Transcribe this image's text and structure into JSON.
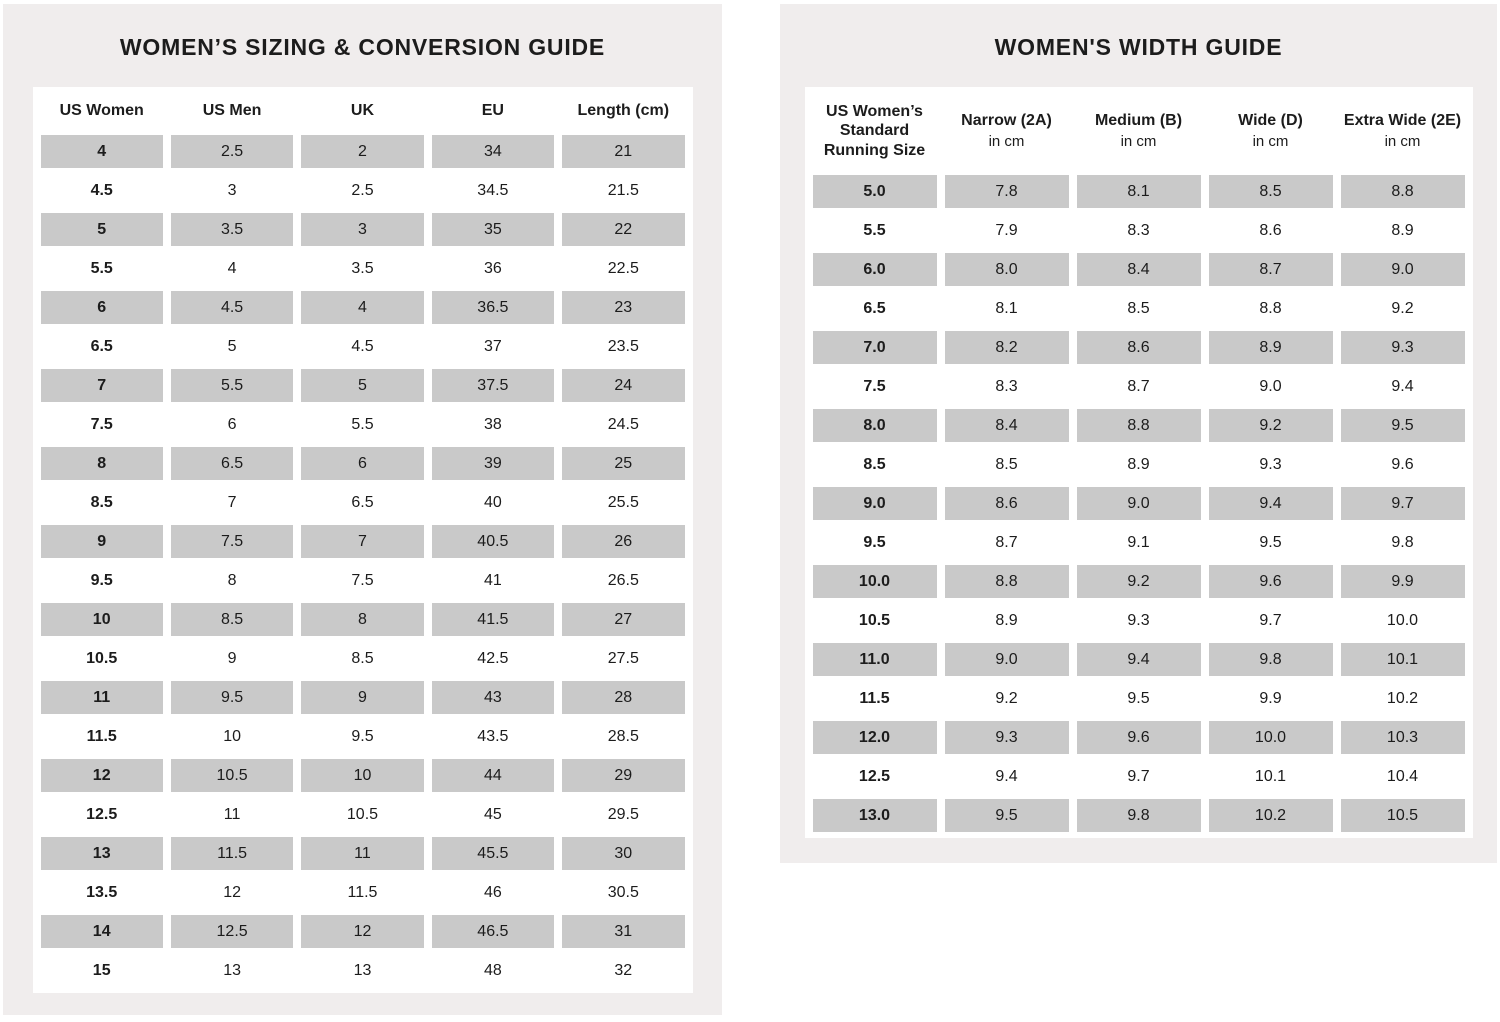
{
  "colors": {
    "panel_bg": "#f0eded",
    "table_bg": "#ffffff",
    "cell_shaded": "#c9c9c9",
    "text": "#1c1c1c"
  },
  "sizing_guide": {
    "title": "WOMEN’S SIZING & CONVERSION GUIDE",
    "columns": [
      {
        "label": "US Women"
      },
      {
        "label": "US Men"
      },
      {
        "label": "UK"
      },
      {
        "label": "EU"
      },
      {
        "label": "Length (cm)"
      }
    ],
    "rows": [
      [
        "4",
        "2.5",
        "2",
        "34",
        "21"
      ],
      [
        "4.5",
        "3",
        "2.5",
        "34.5",
        "21.5"
      ],
      [
        "5",
        "3.5",
        "3",
        "35",
        "22"
      ],
      [
        "5.5",
        "4",
        "3.5",
        "36",
        "22.5"
      ],
      [
        "6",
        "4.5",
        "4",
        "36.5",
        "23"
      ],
      [
        "6.5",
        "5",
        "4.5",
        "37",
        "23.5"
      ],
      [
        "7",
        "5.5",
        "5",
        "37.5",
        "24"
      ],
      [
        "7.5",
        "6",
        "5.5",
        "38",
        "24.5"
      ],
      [
        "8",
        "6.5",
        "6",
        "39",
        "25"
      ],
      [
        "8.5",
        "7",
        "6.5",
        "40",
        "25.5"
      ],
      [
        "9",
        "7.5",
        "7",
        "40.5",
        "26"
      ],
      [
        "9.5",
        "8",
        "7.5",
        "41",
        "26.5"
      ],
      [
        "10",
        "8.5",
        "8",
        "41.5",
        "27"
      ],
      [
        "10.5",
        "9",
        "8.5",
        "42.5",
        "27.5"
      ],
      [
        "11",
        "9.5",
        "9",
        "43",
        "28"
      ],
      [
        "11.5",
        "10",
        "9.5",
        "43.5",
        "28.5"
      ],
      [
        "12",
        "10.5",
        "10",
        "44",
        "29"
      ],
      [
        "12.5",
        "11",
        "10.5",
        "45",
        "29.5"
      ],
      [
        "13",
        "11.5",
        "11",
        "45.5",
        "30"
      ],
      [
        "13.5",
        "12",
        "11.5",
        "46",
        "30.5"
      ],
      [
        "14",
        "12.5",
        "12",
        "46.5",
        "31"
      ],
      [
        "15",
        "13",
        "13",
        "48",
        "32"
      ]
    ]
  },
  "width_guide": {
    "title": "WOMEN'S WIDTH GUIDE",
    "columns": [
      {
        "label": "US Women’s Standard Running Size",
        "stack": true
      },
      {
        "label": "Narrow (2A)",
        "sub": "in cm"
      },
      {
        "label": "Medium (B)",
        "sub": "in cm"
      },
      {
        "label": "Wide (D)",
        "sub": "in cm"
      },
      {
        "label": "Extra Wide (2E)",
        "sub": "in cm"
      }
    ],
    "rows": [
      [
        "5.0",
        "7.8",
        "8.1",
        "8.5",
        "8.8"
      ],
      [
        "5.5",
        "7.9",
        "8.3",
        "8.6",
        "8.9"
      ],
      [
        "6.0",
        "8.0",
        "8.4",
        "8.7",
        "9.0"
      ],
      [
        "6.5",
        "8.1",
        "8.5",
        "8.8",
        "9.2"
      ],
      [
        "7.0",
        "8.2",
        "8.6",
        "8.9",
        "9.3"
      ],
      [
        "7.5",
        "8.3",
        "8.7",
        "9.0",
        "9.4"
      ],
      [
        "8.0",
        "8.4",
        "8.8",
        "9.2",
        "9.5"
      ],
      [
        "8.5",
        "8.5",
        "8.9",
        "9.3",
        "9.6"
      ],
      [
        "9.0",
        "8.6",
        "9.0",
        "9.4",
        "9.7"
      ],
      [
        "9.5",
        "8.7",
        "9.1",
        "9.5",
        "9.8"
      ],
      [
        "10.0",
        "8.8",
        "9.2",
        "9.6",
        "9.9"
      ],
      [
        "10.5",
        "8.9",
        "9.3",
        "9.7",
        "10.0"
      ],
      [
        "11.0",
        "9.0",
        "9.4",
        "9.8",
        "10.1"
      ],
      [
        "11.5",
        "9.2",
        "9.5",
        "9.9",
        "10.2"
      ],
      [
        "12.0",
        "9.3",
        "9.6",
        "10.0",
        "10.3"
      ],
      [
        "12.5",
        "9.4",
        "9.7",
        "10.1",
        "10.4"
      ],
      [
        "13.0",
        "9.5",
        "9.8",
        "10.2",
        "10.5"
      ]
    ]
  }
}
